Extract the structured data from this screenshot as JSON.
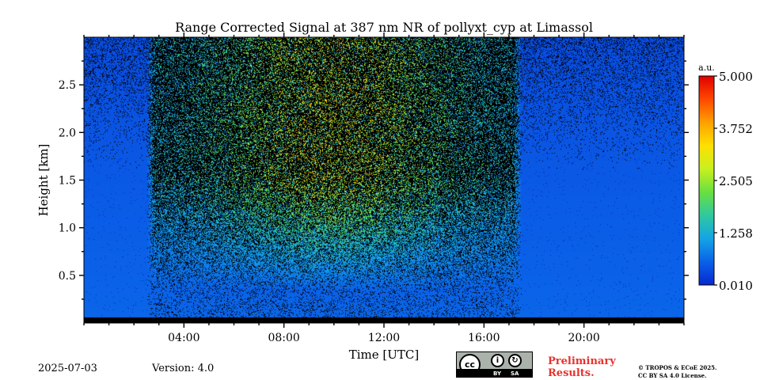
{
  "chart_data": {
    "type": "heatmap",
    "title": "Range Corrected Signal at 387 nm NR of pollyxt_cyp at Limassol",
    "xlabel": "Time [UTC]",
    "ylabel": "Height [km]",
    "x_unit": "hours UTC",
    "xlim": [
      0,
      24
    ],
    "ylim": [
      0,
      3.0
    ],
    "x_ticks": [
      {
        "value": 4,
        "label": "04:00"
      },
      {
        "value": 8,
        "label": "08:00"
      },
      {
        "value": 12,
        "label": "12:00"
      },
      {
        "value": 16,
        "label": "16:00"
      },
      {
        "value": 20,
        "label": "20:00"
      }
    ],
    "y_ticks": [
      {
        "value": 0.5,
        "label": "0.5"
      },
      {
        "value": 1.0,
        "label": "1.0"
      },
      {
        "value": 1.5,
        "label": "1.5"
      },
      {
        "value": 2.0,
        "label": "2.0"
      },
      {
        "value": 2.5,
        "label": "2.5"
      }
    ],
    "colorbar": {
      "unit_label": "a.u.",
      "range": [
        0.01,
        5.0
      ],
      "ticks": [
        {
          "value": 0.01,
          "label": "0.010"
        },
        {
          "value": 1.258,
          "label": "1.258"
        },
        {
          "value": 2.505,
          "label": "2.505"
        },
        {
          "value": 3.752,
          "label": "3.752"
        },
        {
          "value": 5.0,
          "label": "5.000"
        }
      ],
      "colors": [
        "#0828d0",
        "#0a62e8",
        "#14a4e6",
        "#30c8a0",
        "#68e040",
        "#c8f020",
        "#ffe000",
        "#ffa000",
        "#ff4800",
        "#e00000"
      ]
    },
    "features": {
      "background_value": 0.6,
      "daytime_noise_window_hours": [
        2.5,
        17.5
      ],
      "no_signal_band_km": [
        0.0,
        0.06
      ],
      "peak_signal_region": {
        "hours": [
          6,
          14
        ],
        "height_km": [
          2.0,
          3.0
        ],
        "value": 2.8
      }
    }
  },
  "footer": {
    "date": "2025-07-03",
    "version": "Version: 4.0",
    "license_badge": {
      "icon": "cc-by-sa-icon",
      "strip_by": "BY",
      "strip_sa": "SA",
      "cc_text": "cc"
    },
    "preliminary": "Preliminary Results.",
    "copyright_line1": "© TROPOS & ECoE 2025.",
    "copyright_line2": "CC BY SA 4.0 License."
  }
}
